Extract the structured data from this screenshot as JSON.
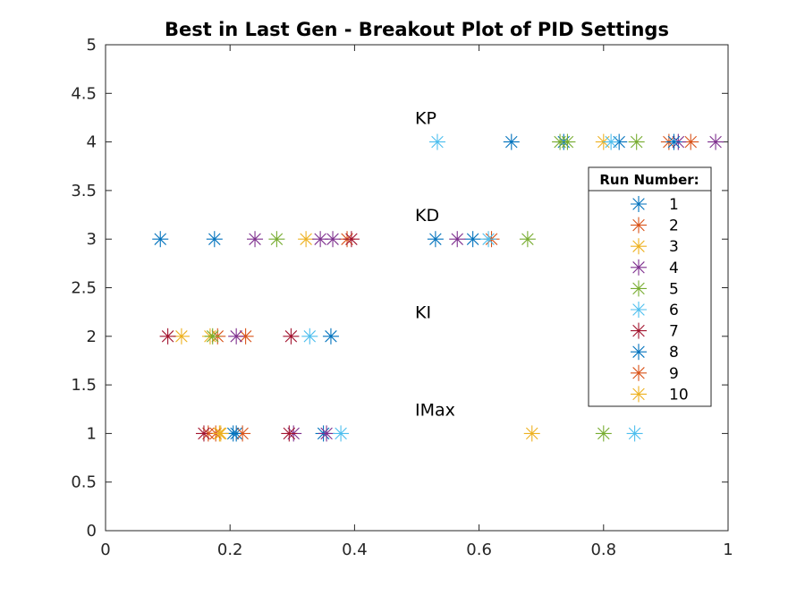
{
  "chart_data": {
    "type": "scatter",
    "title": "Best in Last Gen - Breakout Plot of PID Settings",
    "xlim": [
      0,
      1
    ],
    "ylim": [
      0,
      5
    ],
    "xticks": [
      "0",
      "0.2",
      "0.4",
      "0.6",
      "0.8",
      "1"
    ],
    "yticks": [
      "0",
      "0.5",
      "1",
      "1.5",
      "2",
      "2.5",
      "3",
      "3.5",
      "4",
      "4.5",
      "5"
    ],
    "grid": false,
    "marker": "asterisk",
    "annotations": [
      {
        "text": "KP",
        "x": 0.5,
        "y": 4.25
      },
      {
        "text": "KD",
        "x": 0.5,
        "y": 3.25
      },
      {
        "text": "KI",
        "x": 0.5,
        "y": 2.25
      },
      {
        "text": "IMax",
        "x": 0.5,
        "y": 1.25
      }
    ],
    "legend": {
      "title": "Run Number:",
      "placement": "right"
    },
    "series": [
      {
        "name": "1",
        "color": "#0072BD",
        "points": [
          [
            0.652,
            4
          ],
          [
            0.736,
            4
          ],
          [
            0.825,
            4
          ],
          [
            0.088,
            3
          ],
          [
            0.175,
            3
          ],
          [
            0.59,
            3
          ],
          [
            0.362,
            2
          ],
          [
            0.21,
            1
          ],
          [
            0.35,
            1
          ]
        ]
      },
      {
        "name": "2",
        "color": "#D95319",
        "points": [
          [
            0.905,
            4
          ],
          [
            0.94,
            4
          ],
          [
            0.388,
            3
          ],
          [
            0.62,
            3
          ],
          [
            0.225,
            2
          ],
          [
            0.18,
            2
          ],
          [
            0.22,
            1
          ],
          [
            0.165,
            1
          ]
        ]
      },
      {
        "name": "3",
        "color": "#EDB120",
        "points": [
          [
            0.8,
            4
          ],
          [
            0.322,
            3
          ],
          [
            0.122,
            2
          ],
          [
            0.168,
            2
          ],
          [
            0.183,
            1
          ],
          [
            0.685,
            1
          ]
        ]
      },
      {
        "name": "4",
        "color": "#7E2F8E",
        "points": [
          [
            0.98,
            4
          ],
          [
            0.92,
            4
          ],
          [
            0.24,
            3
          ],
          [
            0.345,
            3
          ],
          [
            0.565,
            3
          ],
          [
            0.365,
            3
          ],
          [
            0.21,
            2
          ],
          [
            0.302,
            1
          ],
          [
            0.355,
            1
          ]
        ]
      },
      {
        "name": "5",
        "color": "#77AC30",
        "points": [
          [
            0.73,
            4
          ],
          [
            0.742,
            4
          ],
          [
            0.853,
            4
          ],
          [
            0.275,
            3
          ],
          [
            0.678,
            3
          ],
          [
            0.172,
            2
          ],
          [
            0.8,
            1
          ]
        ]
      },
      {
        "name": "6",
        "color": "#4DBEEE",
        "points": [
          [
            0.533,
            4
          ],
          [
            0.812,
            4
          ],
          [
            0.615,
            3
          ],
          [
            0.328,
            2
          ],
          [
            0.378,
            1
          ],
          [
            0.85,
            1
          ]
        ]
      },
      {
        "name": "7",
        "color": "#A2142F",
        "points": [
          [
            0.395,
            3
          ],
          [
            0.1,
            2
          ],
          [
            0.298,
            2
          ],
          [
            0.158,
            1
          ],
          [
            0.295,
            1
          ]
        ]
      },
      {
        "name": "8",
        "color": "#0072BD",
        "points": [
          [
            0.913,
            4
          ],
          [
            0.53,
            3
          ],
          [
            0.205,
            1
          ]
        ]
      },
      {
        "name": "9",
        "color": "#D95319",
        "points": [
          [
            0.177,
            1
          ]
        ]
      },
      {
        "name": "10",
        "color": "#EDB120",
        "points": [
          [
            0.185,
            1
          ]
        ]
      }
    ]
  }
}
